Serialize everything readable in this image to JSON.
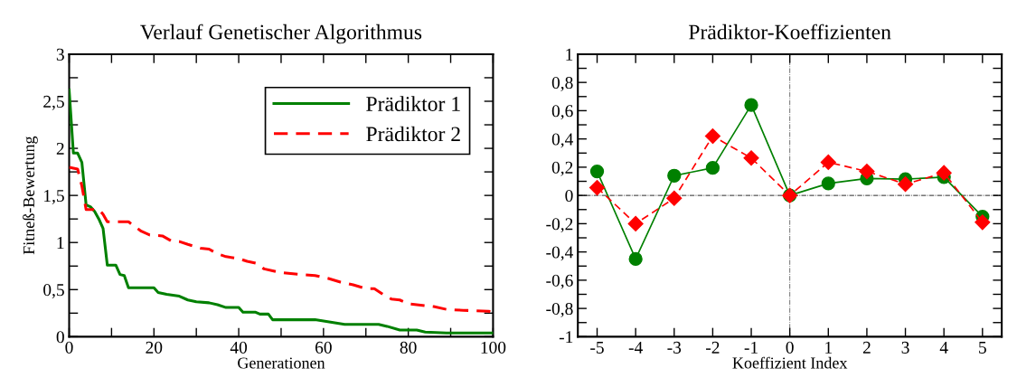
{
  "chart_data": [
    {
      "type": "line",
      "title": "Verlauf Genetischer Algorithmus",
      "xlabel": "Generationen",
      "ylabel": "Fitneß-Bewertung",
      "legend": "top right",
      "grid": false,
      "marker": "none",
      "xlim": [
        0,
        100
      ],
      "ylim": [
        0,
        3
      ],
      "xticks": [
        0,
        {
          "value": 10,
          "label": null
        },
        20,
        {
          "value": 30,
          "label": null
        },
        40,
        {
          "value": 50,
          "label": null
        },
        60,
        {
          "value": 70,
          "label": null
        },
        80,
        {
          "value": 90,
          "label": null
        },
        100
      ],
      "yticks": [
        0,
        {
          "value": 0.25,
          "label": null
        },
        {
          "value": 0.5,
          "label": "0,5"
        },
        {
          "value": 0.75,
          "label": null
        },
        1,
        {
          "value": 1.25,
          "label": null
        },
        {
          "value": 1.5,
          "label": "1,5"
        },
        {
          "value": 1.75,
          "label": null
        },
        2,
        {
          "value": 2.25,
          "label": null
        },
        {
          "value": 2.5,
          "label": "2,5"
        },
        {
          "value": 2.75,
          "label": null
        },
        3
      ],
      "series": [
        {
          "name": "Prädiktor 1",
          "color": "#008000",
          "line_style": "solid",
          "x": [
            0,
            1,
            2,
            3,
            4,
            5,
            6,
            7,
            8,
            9,
            11,
            12,
            13,
            14,
            20,
            21,
            23,
            26,
            28,
            30,
            33,
            35,
            37,
            40,
            41,
            44,
            45,
            47,
            48,
            58,
            61,
            65,
            73,
            75,
            78,
            82,
            84,
            89,
            100
          ],
          "values": [
            2.62,
            1.95,
            1.95,
            1.85,
            1.4,
            1.38,
            1.33,
            1.25,
            1.15,
            0.76,
            0.76,
            0.66,
            0.65,
            0.52,
            0.52,
            0.47,
            0.45,
            0.43,
            0.39,
            0.37,
            0.36,
            0.34,
            0.31,
            0.31,
            0.26,
            0.26,
            0.24,
            0.24,
            0.18,
            0.18,
            0.16,
            0.13,
            0.13,
            0.11,
            0.07,
            0.07,
            0.05,
            0.04,
            0.04
          ]
        },
        {
          "name": "Prädiktor 2",
          "color": "#ff0000",
          "line_style": "dashed",
          "x": [
            0,
            2,
            3,
            4,
            7,
            8,
            9,
            14,
            17,
            19,
            22,
            24,
            26,
            28,
            31,
            33,
            35,
            37,
            40,
            42,
            44,
            46,
            48,
            50,
            55,
            58,
            61,
            64,
            67,
            70,
            72,
            74,
            76,
            78,
            80,
            84,
            86,
            89,
            93,
            99,
            100
          ],
          "values": [
            1.8,
            1.78,
            1.6,
            1.35,
            1.35,
            1.3,
            1.22,
            1.22,
            1.12,
            1.08,
            1.07,
            1.02,
            1.01,
            0.98,
            0.94,
            0.93,
            0.88,
            0.85,
            0.83,
            0.8,
            0.78,
            0.72,
            0.7,
            0.68,
            0.66,
            0.65,
            0.62,
            0.58,
            0.55,
            0.51,
            0.51,
            0.45,
            0.4,
            0.39,
            0.35,
            0.33,
            0.32,
            0.29,
            0.28,
            0.27,
            0.25
          ]
        }
      ]
    },
    {
      "type": "line",
      "title": "Prädiktor-Koeffizienten",
      "xlabel": "Koeffizient Index",
      "grid": false,
      "legend": false,
      "xlim": [
        -5.5,
        5.5
      ],
      "ylim": [
        -1,
        1
      ],
      "xticks": [
        -5,
        -4,
        -3,
        -2,
        -1,
        0,
        1,
        2,
        3,
        4,
        5
      ],
      "yticks": [
        -1,
        {
          "value": -0.9,
          "label": null
        },
        {
          "value": -0.8,
          "label": "-0,8"
        },
        {
          "value": -0.7,
          "label": null
        },
        {
          "value": -0.6,
          "label": "-0,6"
        },
        {
          "value": -0.5,
          "label": null
        },
        {
          "value": -0.4,
          "label": "-0,4"
        },
        {
          "value": -0.3,
          "label": null
        },
        {
          "value": -0.2,
          "label": "-0,2"
        },
        {
          "value": -0.1,
          "label": null
        },
        0,
        {
          "value": 0.1,
          "label": null
        },
        {
          "value": 0.2,
          "label": "0,2"
        },
        {
          "value": 0.3,
          "label": null
        },
        {
          "value": 0.4,
          "label": "0,4"
        },
        {
          "value": 0.5,
          "label": null
        },
        {
          "value": 0.6,
          "label": "0,6"
        },
        {
          "value": 0.7,
          "label": null
        },
        {
          "value": 0.8,
          "label": "0,8"
        },
        {
          "value": 0.9,
          "label": null
        },
        1
      ],
      "x": [
        -5,
        -4,
        -3,
        -2,
        -1,
        0,
        1,
        2,
        3,
        4,
        5
      ],
      "ref_lines": [
        {
          "axis": "y",
          "value": 0,
          "color": "#000000",
          "line_style": "dashdot"
        },
        {
          "axis": "x",
          "value": 0,
          "color": "#555555",
          "line_style": "dashdot"
        }
      ],
      "series": [
        {
          "color": "#008000",
          "marker": "circle",
          "line_style": "solid",
          "values": [
            0.17,
            -0.45,
            0.14,
            0.195,
            0.64,
            0.0,
            0.085,
            0.12,
            0.115,
            0.13,
            -0.15
          ]
        },
        {
          "color": "#ff0000",
          "marker": "diamond",
          "line_style": "dashed",
          "values": [
            0.055,
            -0.2,
            -0.02,
            0.42,
            0.265,
            0.0,
            0.235,
            0.17,
            0.08,
            0.16,
            -0.19
          ]
        }
      ]
    }
  ]
}
